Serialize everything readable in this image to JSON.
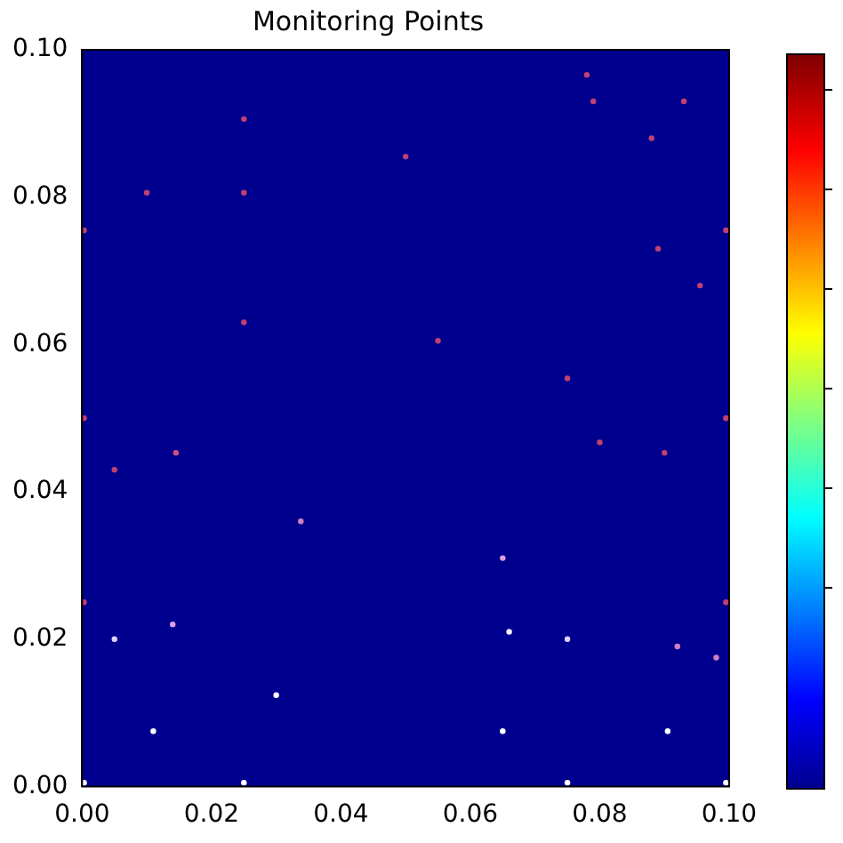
{
  "chart_data": {
    "type": "scatter",
    "title": "Monitoring Points",
    "marker": "circle",
    "grid": false,
    "legend": false,
    "xlim": [
      0,
      0.1
    ],
    "xticks": [
      {
        "value": 0,
        "label": "0.00"
      },
      {
        "value": 0.02,
        "label": "0.02"
      },
      {
        "value": 0.04,
        "label": "0.04"
      },
      {
        "value": 0.06,
        "label": "0.06"
      },
      {
        "value": 0.08,
        "label": "0.08"
      },
      {
        "value": 0.1,
        "label": "0.10"
      }
    ],
    "ylim": [
      0,
      0.1
    ],
    "yticks": [
      {
        "value": 0,
        "label": "0.00"
      },
      {
        "value": 0.02,
        "label": "0.02"
      },
      {
        "value": 0.04,
        "label": "0.04"
      },
      {
        "value": 0.06,
        "label": "0.06"
      },
      {
        "value": 0.08,
        "label": "0.08"
      },
      {
        "value": 0.1,
        "label": "0.10"
      }
    ],
    "x": [
      0.025,
      0.01,
      0.025,
      0.0003,
      0.05,
      0.025,
      0.055,
      0.078,
      0.079,
      0.093,
      0.088,
      0.089,
      0.0995,
      0.0955,
      0.075,
      0.08,
      0.09,
      0.0995,
      0.0003,
      0.005,
      0.0145,
      0.0338,
      0.065,
      0.0003,
      0.005,
      0.014,
      0.066,
      0.075,
      0.092,
      0.098,
      0.0995,
      0.03,
      0.011,
      0.065,
      0.0905,
      0.025,
      0.075,
      0.0003,
      0.0995
    ],
    "values": [
      0.0906,
      0.0806,
      0.0806,
      0.0755,
      0.0855,
      0.063,
      0.0605,
      0.0966,
      0.093,
      0.093,
      0.088,
      0.073,
      0.0755,
      0.068,
      0.0554,
      0.0467,
      0.0453,
      0.05,
      0.05,
      0.043,
      0.0453,
      0.036,
      0.031,
      0.025,
      0.02,
      0.022,
      0.021,
      0.02,
      0.019,
      0.0175,
      0.025,
      0.0124,
      0.0075,
      0.0075,
      0.0075,
      0.0005,
      0.0005,
      0.0005,
      0.0005
    ],
    "colors": [
      "#c04070",
      "#c04070",
      "#c04070",
      "#c04070",
      "#c04070",
      "#c04070",
      "#c04070",
      "#c04070",
      "#c04070",
      "#c04070",
      "#c04070",
      "#c04070",
      "#c04070",
      "#c04070",
      "#c04070",
      "#c04070",
      "#c04070",
      "#c04070",
      "#c04070",
      "#c04070",
      "#d05080",
      "#d080c0",
      "#e0a0e0",
      "#c04070",
      "#e0d0ff",
      "#e0a0e0",
      "#f0f0ff",
      "#e0d0ff",
      "#d080c0",
      "#d080c0",
      "#c04070",
      "#ffffff",
      "#ffffff",
      "#ffffff",
      "#ffffff",
      "#ffffff",
      "#ffffff",
      "#ffffff",
      "#ffffff"
    ]
  }
}
